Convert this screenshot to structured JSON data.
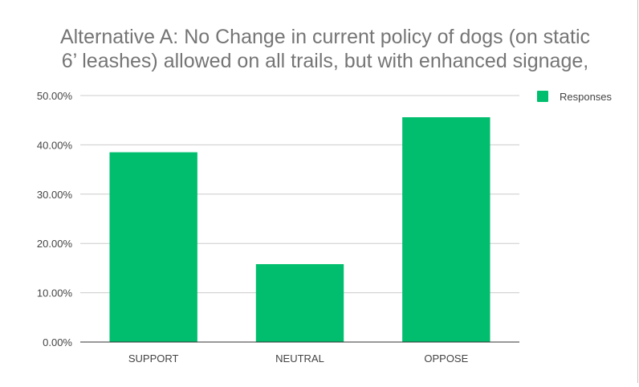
{
  "chart_data": {
    "type": "bar",
    "title_lines": [
      "Alternative A: No Change in current policy of dogs (on static",
      "6’ leashes) allowed on all trails, but with enhanced signage,"
    ],
    "categories": [
      "SUPPORT",
      "NEUTRAL",
      "OPPOSE"
    ],
    "series": [
      {
        "name": "Responses",
        "values": [
          38.5,
          15.8,
          45.6
        ],
        "color": "#00be6e"
      }
    ],
    "ylim": [
      0,
      50
    ],
    "yticks": [
      "0.00%",
      "10.00%",
      "20.00%",
      "30.00%",
      "40.00%",
      "50.00%"
    ],
    "grid": true,
    "legend_position": "right",
    "xlabel": "",
    "ylabel": ""
  }
}
